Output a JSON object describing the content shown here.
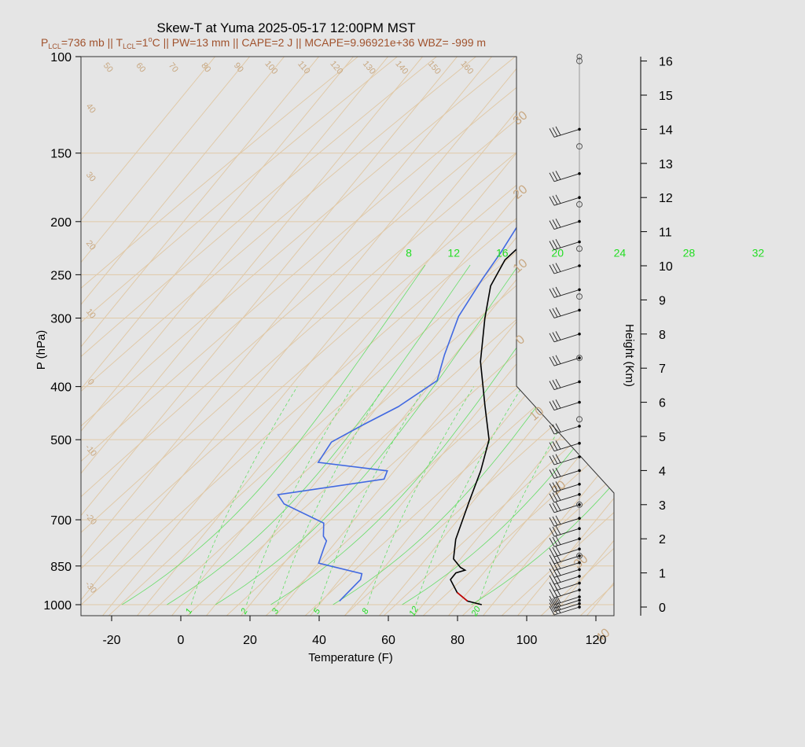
{
  "title": "Skew-T at Yuma 2025-05-17 12:00PM MST",
  "subtitle_parts": {
    "p_lcl_label": "P",
    "p_lcl_sub": "LCL",
    "p_lcl_value": "=736 mb || T",
    "t_lcl_sub": "LCL",
    "t_lcl_value": "=1",
    "t_lcl_sup": "o",
    "rest": "C || PW=13 mm || CAPE=2 J || MCAPE=9.96921e+36 WBZ= -999 m"
  },
  "chart_data": {
    "type": "line",
    "title": "Skew-T at Yuma 2025-05-17 12:00PM MST",
    "xlabel": "Temperature (F)",
    "ylabel": "P (hPa)",
    "y2label": "Height (Km)",
    "x_ticks": [
      "-20",
      "0",
      "20",
      "40",
      "60",
      "80",
      "100",
      "120"
    ],
    "x_tick_values": [
      -20,
      0,
      20,
      40,
      60,
      80,
      100,
      120
    ],
    "y_ticks": [
      "100",
      "150",
      "200",
      "250",
      "300",
      "400",
      "500",
      "700",
      "850",
      "1000"
    ],
    "y_tick_values": [
      100,
      150,
      200,
      250,
      300,
      400,
      500,
      700,
      850,
      1000
    ],
    "y2_ticks": [
      "0",
      "1",
      "2",
      "3",
      "4",
      "5",
      "6",
      "7",
      "8",
      "9",
      "10",
      "11",
      "12",
      "13",
      "14",
      "15",
      "16"
    ],
    "y2_tick_values": [
      0,
      1,
      2,
      3,
      4,
      5,
      6,
      7,
      8,
      9,
      10,
      11,
      12,
      13,
      14,
      15,
      16
    ],
    "xlim": [
      -28,
      125
    ],
    "ylim": [
      1050,
      100
    ],
    "y_scale": "log",
    "temperature_series": {
      "color": "#000000",
      "points": [
        [
          87,
          1000
        ],
        [
          82,
          985
        ],
        [
          77,
          950
        ],
        [
          72,
          900
        ],
        [
          72,
          875
        ],
        [
          74,
          865
        ],
        [
          72,
          855
        ],
        [
          68,
          825
        ],
        [
          64,
          760
        ],
        [
          59,
          650
        ],
        [
          55,
          570
        ],
        [
          50,
          500
        ],
        [
          41,
          435
        ],
        [
          29,
          360
        ],
        [
          20,
          300
        ],
        [
          14,
          262
        ],
        [
          12,
          235
        ],
        [
          14,
          210
        ],
        [
          18,
          190
        ],
        [
          25,
          165
        ],
        [
          33,
          145
        ],
        [
          43,
          125
        ],
        [
          55,
          110
        ],
        [
          66,
          100
        ]
      ]
    },
    "dewpoint_series": {
      "color": "#4169e1",
      "points": [
        [
          45,
          985
        ],
        [
          46,
          900
        ],
        [
          45,
          878
        ],
        [
          30,
          840
        ],
        [
          28,
          790
        ],
        [
          27,
          765
        ],
        [
          25,
          750
        ],
        [
          22,
          710
        ],
        [
          6,
          655
        ],
        [
          2,
          630
        ],
        [
          29,
          590
        ],
        [
          28,
          570
        ],
        [
          6,
          550
        ],
        [
          5,
          505
        ],
        [
          10,
          470
        ],
        [
          16,
          435
        ],
        [
          21,
          390
        ],
        [
          17,
          350
        ],
        [
          12,
          298
        ],
        [
          10,
          255
        ],
        [
          9,
          227
        ],
        [
          7,
          195
        ],
        [
          4,
          162
        ],
        [
          8,
          135
        ],
        [
          25,
          100
        ]
      ]
    },
    "parcel_series": {
      "color": "#cc0000",
      "points": [
        [
          82,
          985
        ],
        [
          77,
          950
        ]
      ]
    },
    "mixing_ratio_lines": {
      "top_labels": [
        "8",
        "12",
        "16",
        "20",
        "24",
        "28",
        "32"
      ],
      "top_values_F": [
        -17,
        -4,
        10,
        26,
        44,
        64,
        84
      ],
      "bottom_labels": [
        "1",
        "2",
        "3",
        "5",
        "8",
        "12",
        "20"
      ],
      "bottom_values_F": [
        3,
        19,
        28,
        40,
        54,
        68,
        86
      ]
    },
    "dry_adiabat_labels": [
      "50",
      "60",
      "70",
      "80",
      "90",
      "100",
      "110",
      "120",
      "130",
      "140",
      "150",
      "160"
    ],
    "isotherm_labels_left": [
      "40",
      "30",
      "20",
      "10",
      "0",
      "-10",
      "-20",
      "-30"
    ],
    "isotherm_labels_right": [
      "30",
      "20",
      "10",
      "0",
      "10",
      "20",
      "30",
      "40"
    ],
    "wind_profile_heights_km": [
      0,
      0.1,
      0.2,
      0.3,
      0.5,
      0.7,
      0.9,
      1.1,
      1.3,
      1.5,
      1.7,
      2.0,
      2.3,
      2.6,
      3.0,
      3.3,
      3.6,
      4.0,
      4.4,
      4.8,
      5.3,
      6.0,
      6.6,
      7.3,
      8.0,
      8.7,
      9.3,
      10.0,
      10.7,
      11.3,
      12.0,
      12.7,
      14.0
    ],
    "legend": "none",
    "grid": true
  }
}
